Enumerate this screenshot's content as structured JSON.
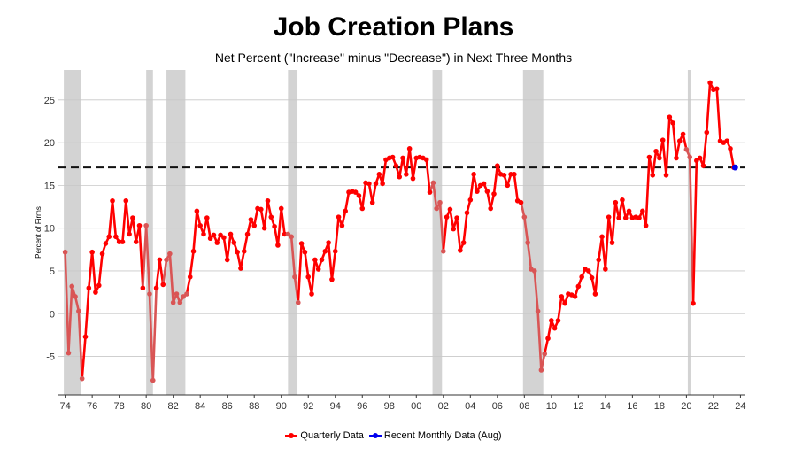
{
  "chart_data": {
    "type": "line",
    "title": "Job Creation Plans",
    "subtitle": "Net Percent (\"Increase\" minus \"Decrease\") in Next Three Months",
    "ylabel": "Percent of Firms",
    "xlabel": "",
    "xlim": [
      1973.5,
      2024.3
    ],
    "ylim": [
      -9.5,
      28.5
    ],
    "y_ticks": [
      -5,
      0,
      5,
      10,
      15,
      20,
      25
    ],
    "x_ticks": [
      {
        "value": 1974,
        "label": "74"
      },
      {
        "value": 1976,
        "label": "76"
      },
      {
        "value": 1978,
        "label": "78"
      },
      {
        "value": 1980,
        "label": "80"
      },
      {
        "value": 1982,
        "label": "82"
      },
      {
        "value": 1984,
        "label": "84"
      },
      {
        "value": 1986,
        "label": "86"
      },
      {
        "value": 1988,
        "label": "88"
      },
      {
        "value": 1990,
        "label": "90"
      },
      {
        "value": 1992,
        "label": "92"
      },
      {
        "value": 1994,
        "label": "94"
      },
      {
        "value": 1996,
        "label": "96"
      },
      {
        "value": 1998,
        "label": "98"
      },
      {
        "value": 2000,
        "label": "00"
      },
      {
        "value": 2002,
        "label": "02"
      },
      {
        "value": 2004,
        "label": "04"
      },
      {
        "value": 2006,
        "label": "06"
      },
      {
        "value": 2008,
        "label": "08"
      },
      {
        "value": 2010,
        "label": "10"
      },
      {
        "value": 2012,
        "label": "12"
      },
      {
        "value": 2014,
        "label": "14"
      },
      {
        "value": 2016,
        "label": "16"
      },
      {
        "value": 2018,
        "label": "18"
      },
      {
        "value": 2020,
        "label": "20"
      },
      {
        "value": 2022,
        "label": "22"
      },
      {
        "value": 2024,
        "label": "24"
      }
    ],
    "grid": true,
    "reference_line": {
      "y": 17.1,
      "style": "dashed",
      "color": "#111111"
    },
    "recession_bands": [
      [
        1973.9,
        1975.2
      ],
      [
        1980.0,
        1980.5
      ],
      [
        1981.5,
        1982.9
      ],
      [
        1990.5,
        1991.2
      ],
      [
        2001.2,
        2001.9
      ],
      [
        2007.9,
        2009.4
      ],
      [
        2020.1,
        2020.3
      ]
    ],
    "series": [
      {
        "name": "Quarterly Data",
        "color": "#ff0000",
        "points": [
          [
            1974.0,
            7.2
          ],
          [
            1974.25,
            -4.6
          ],
          [
            1974.5,
            3.2
          ],
          [
            1974.75,
            2.0
          ],
          [
            1975.0,
            0.3
          ],
          [
            1975.25,
            -7.6
          ],
          [
            1975.5,
            -2.7
          ],
          [
            1975.75,
            3.0
          ],
          [
            1976.0,
            7.2
          ],
          [
            1976.25,
            2.5
          ],
          [
            1976.5,
            3.3
          ],
          [
            1976.75,
            7.0
          ],
          [
            1977.0,
            8.2
          ],
          [
            1977.25,
            9.0
          ],
          [
            1977.5,
            13.2
          ],
          [
            1977.75,
            9.0
          ],
          [
            1978.0,
            8.4
          ],
          [
            1978.25,
            8.4
          ],
          [
            1978.5,
            13.2
          ],
          [
            1978.75,
            9.3
          ],
          [
            1979.0,
            11.2
          ],
          [
            1979.25,
            8.4
          ],
          [
            1979.5,
            10.3
          ],
          [
            1979.75,
            3.0
          ],
          [
            1980.0,
            10.3
          ],
          [
            1980.25,
            2.3
          ],
          [
            1980.5,
            -7.8
          ],
          [
            1980.75,
            3.0
          ],
          [
            1981.0,
            6.3
          ],
          [
            1981.25,
            3.4
          ],
          [
            1981.5,
            6.3
          ],
          [
            1981.75,
            7.0
          ],
          [
            1982.0,
            1.3
          ],
          [
            1982.25,
            2.3
          ],
          [
            1982.5,
            1.3
          ],
          [
            1982.75,
            2.0
          ],
          [
            1983.0,
            2.3
          ],
          [
            1983.25,
            4.3
          ],
          [
            1983.5,
            7.3
          ],
          [
            1983.75,
            12.0
          ],
          [
            1984.0,
            10.3
          ],
          [
            1984.25,
            9.3
          ],
          [
            1984.5,
            11.2
          ],
          [
            1984.75,
            8.8
          ],
          [
            1985.0,
            9.2
          ],
          [
            1985.25,
            8.3
          ],
          [
            1985.5,
            9.2
          ],
          [
            1985.75,
            8.9
          ],
          [
            1986.0,
            6.3
          ],
          [
            1986.25,
            9.3
          ],
          [
            1986.5,
            8.3
          ],
          [
            1986.75,
            7.2
          ],
          [
            1987.0,
            5.3
          ],
          [
            1987.25,
            7.3
          ],
          [
            1987.5,
            9.3
          ],
          [
            1987.75,
            11.0
          ],
          [
            1988.0,
            10.3
          ],
          [
            1988.25,
            12.3
          ],
          [
            1988.5,
            12.2
          ],
          [
            1988.75,
            10.0
          ],
          [
            1989.0,
            13.2
          ],
          [
            1989.25,
            11.3
          ],
          [
            1989.5,
            10.2
          ],
          [
            1989.75,
            8.0
          ],
          [
            1990.0,
            12.3
          ],
          [
            1990.25,
            9.3
          ],
          [
            1990.5,
            9.3
          ],
          [
            1990.75,
            9.0
          ],
          [
            1991.0,
            4.3
          ],
          [
            1991.25,
            1.3
          ],
          [
            1991.5,
            8.2
          ],
          [
            1991.75,
            7.2
          ],
          [
            1992.0,
            4.3
          ],
          [
            1992.25,
            2.3
          ],
          [
            1992.5,
            6.3
          ],
          [
            1992.75,
            5.2
          ],
          [
            1993.0,
            6.3
          ],
          [
            1993.25,
            7.3
          ],
          [
            1993.5,
            8.3
          ],
          [
            1993.75,
            4.0
          ],
          [
            1994.0,
            7.3
          ],
          [
            1994.25,
            11.3
          ],
          [
            1994.5,
            10.3
          ],
          [
            1994.75,
            12.0
          ],
          [
            1995.0,
            14.2
          ],
          [
            1995.25,
            14.3
          ],
          [
            1995.5,
            14.2
          ],
          [
            1995.75,
            13.8
          ],
          [
            1996.0,
            12.3
          ],
          [
            1996.25,
            15.3
          ],
          [
            1996.5,
            15.2
          ],
          [
            1996.75,
            13.0
          ],
          [
            1997.0,
            15.2
          ],
          [
            1997.25,
            16.3
          ],
          [
            1997.5,
            15.2
          ],
          [
            1997.75,
            18.0
          ],
          [
            1998.0,
            18.2
          ],
          [
            1998.25,
            18.3
          ],
          [
            1998.5,
            17.3
          ],
          [
            1998.75,
            16.0
          ],
          [
            1999.0,
            18.2
          ],
          [
            1999.25,
            16.3
          ],
          [
            1999.5,
            19.3
          ],
          [
            1999.75,
            15.8
          ],
          [
            2000.0,
            18.2
          ],
          [
            2000.25,
            18.3
          ],
          [
            2000.5,
            18.2
          ],
          [
            2000.75,
            18.0
          ],
          [
            2001.0,
            14.2
          ],
          [
            2001.25,
            15.3
          ],
          [
            2001.5,
            12.3
          ],
          [
            2001.75,
            13.0
          ],
          [
            2002.0,
            7.3
          ],
          [
            2002.25,
            11.3
          ],
          [
            2002.5,
            12.2
          ],
          [
            2002.75,
            9.9
          ],
          [
            2003.0,
            11.2
          ],
          [
            2003.25,
            7.4
          ],
          [
            2003.5,
            8.3
          ],
          [
            2003.75,
            11.8
          ],
          [
            2004.0,
            13.3
          ],
          [
            2004.25,
            16.3
          ],
          [
            2004.5,
            14.3
          ],
          [
            2004.75,
            15.0
          ],
          [
            2005.0,
            15.2
          ],
          [
            2005.25,
            14.3
          ],
          [
            2005.5,
            12.3
          ],
          [
            2005.75,
            14.0
          ],
          [
            2006.0,
            17.3
          ],
          [
            2006.25,
            16.3
          ],
          [
            2006.5,
            16.2
          ],
          [
            2006.75,
            15.0
          ],
          [
            2007.0,
            16.3
          ],
          [
            2007.25,
            16.3
          ],
          [
            2007.5,
            13.2
          ],
          [
            2007.75,
            13.0
          ],
          [
            2008.0,
            11.3
          ],
          [
            2008.25,
            8.3
          ],
          [
            2008.5,
            5.2
          ],
          [
            2008.75,
            5.0
          ],
          [
            2009.0,
            0.3
          ],
          [
            2009.25,
            -6.6
          ],
          [
            2009.5,
            -4.7
          ],
          [
            2009.75,
            -2.9
          ],
          [
            2010.0,
            -0.8
          ],
          [
            2010.25,
            -1.7
          ],
          [
            2010.5,
            -0.8
          ],
          [
            2010.75,
            2.0
          ],
          [
            2011.0,
            1.2
          ],
          [
            2011.25,
            2.3
          ],
          [
            2011.5,
            2.2
          ],
          [
            2011.75,
            2.0
          ],
          [
            2012.0,
            3.2
          ],
          [
            2012.25,
            4.3
          ],
          [
            2012.5,
            5.2
          ],
          [
            2012.75,
            5.0
          ],
          [
            2013.0,
            4.2
          ],
          [
            2013.25,
            2.3
          ],
          [
            2013.5,
            6.3
          ],
          [
            2013.75,
            9.0
          ],
          [
            2014.0,
            5.2
          ],
          [
            2014.25,
            11.3
          ],
          [
            2014.5,
            8.3
          ],
          [
            2014.75,
            13.0
          ],
          [
            2015.0,
            11.2
          ],
          [
            2015.25,
            13.3
          ],
          [
            2015.5,
            11.2
          ],
          [
            2015.75,
            12.0
          ],
          [
            2016.0,
            11.2
          ],
          [
            2016.25,
            11.3
          ],
          [
            2016.5,
            11.2
          ],
          [
            2016.75,
            12.0
          ],
          [
            2017.0,
            10.3
          ],
          [
            2017.25,
            18.3
          ],
          [
            2017.5,
            16.2
          ],
          [
            2017.75,
            19.0
          ],
          [
            2018.0,
            18.2
          ],
          [
            2018.25,
            20.3
          ],
          [
            2018.5,
            16.2
          ],
          [
            2018.75,
            23.0
          ],
          [
            2019.0,
            22.3
          ],
          [
            2019.25,
            18.2
          ],
          [
            2019.5,
            20.2
          ],
          [
            2019.75,
            21.0
          ],
          [
            2020.0,
            19.2
          ],
          [
            2020.25,
            18.3
          ],
          [
            2020.5,
            1.2
          ],
          [
            2020.75,
            17.9
          ],
          [
            2021.0,
            18.2
          ],
          [
            2021.25,
            17.3
          ],
          [
            2021.5,
            21.2
          ],
          [
            2021.75,
            27.0
          ],
          [
            2022.0,
            26.2
          ],
          [
            2022.25,
            26.3
          ],
          [
            2022.5,
            20.2
          ],
          [
            2022.75,
            20.0
          ],
          [
            2023.0,
            20.2
          ],
          [
            2023.25,
            19.3
          ],
          [
            2023.5,
            17.1
          ]
        ]
      },
      {
        "name": "Recent Monthly Data (Aug)",
        "color": "#0000ee",
        "points": [
          [
            2023.6,
            17.1
          ]
        ]
      }
    ]
  },
  "legend": {
    "items": [
      {
        "label": "Quarterly Data",
        "color": "#ff0000"
      },
      {
        "label": "Recent Monthly Data (Aug)",
        "color": "#0000ee"
      }
    ]
  }
}
